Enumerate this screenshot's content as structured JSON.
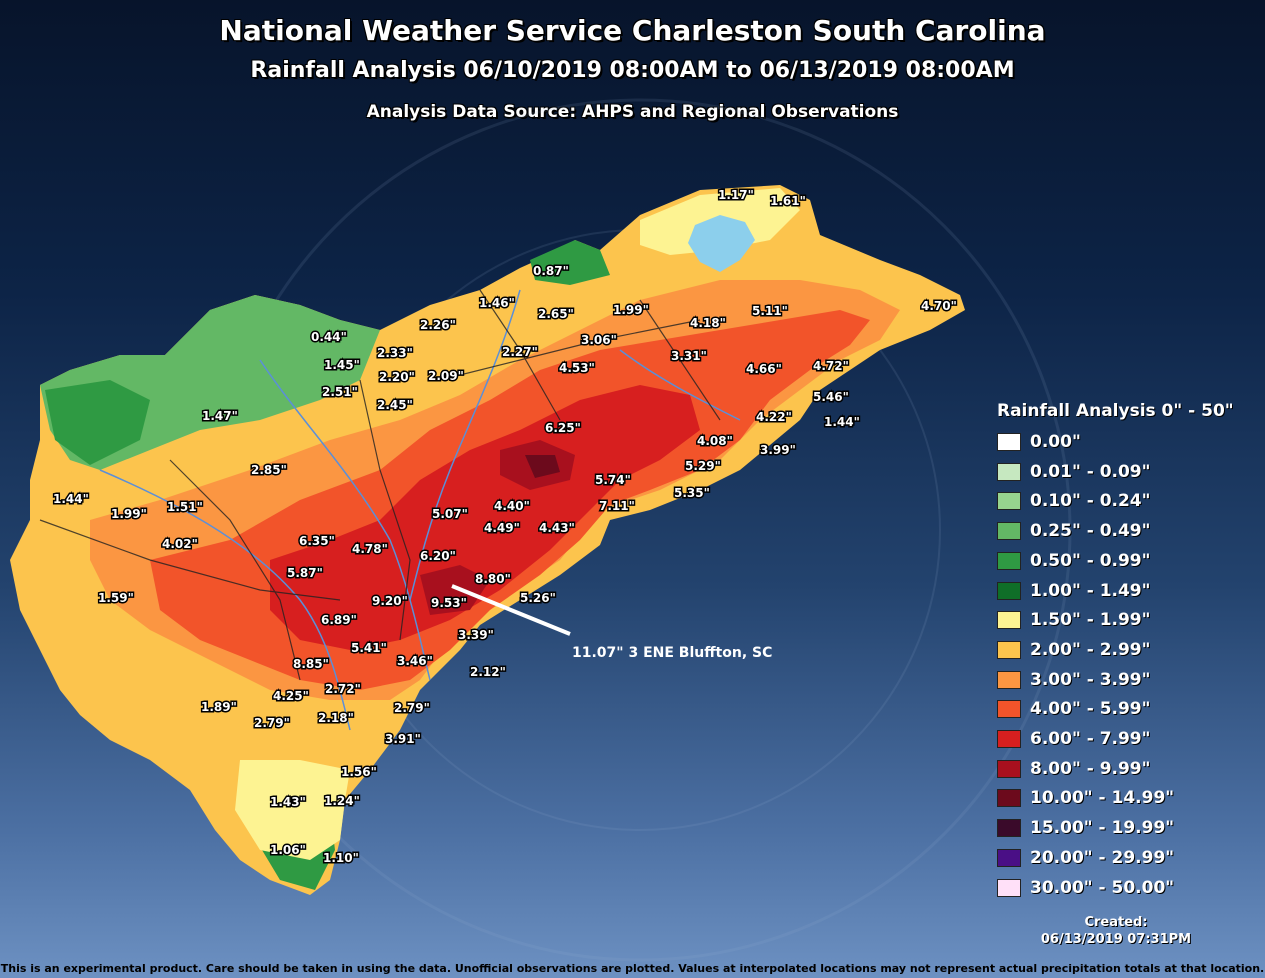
{
  "title": "National Weather Service Charleston South Carolina",
  "subtitle": "Rainfall Analysis 06/10/2019 08:00AM to 06/13/2019 08:00AM",
  "source": "Analysis Data Source: AHPS and Regional Observations",
  "watermark_icon": "nws-seal-watermark",
  "map": {
    "max_annotation": "11.07\" 3 ENE Bluffton, SC",
    "labels": [
      "1.17\"",
      "1.61\"",
      "0.87\"",
      "4.70\"",
      "1.46\"",
      "2.65\"",
      "1.99\"",
      "4.18\"",
      "5.11\"",
      "2.26\"",
      "3.06\"",
      "3.31\"",
      "0.44\"",
      "2.33\"",
      "2.27\"",
      "4.53\"",
      "4.66\"",
      "4.72\"",
      "1.45\"",
      "2.20\"",
      "2.09\"",
      "5.46\"",
      "2.51\"",
      "2.45\"",
      "4.22\"",
      "1.44\"",
      "1.47\"",
      "6.25\"",
      "4.08\"",
      "3.99\"",
      "2.85\"",
      "5.29\"",
      "5.74\"",
      "1.44\"",
      "5.35\"",
      "1.51\"",
      "4.40\"",
      "7.11\"",
      "1.99\"",
      "5.07\"",
      "4.49\"",
      "4.43\"",
      "4.02\"",
      "6.35\"",
      "4.78\"",
      "6.20\"",
      "5.87\"",
      "8.80\"",
      "1.59\"",
      "9.20\"",
      "9.53\"",
      "5.26\"",
      "6.89\"",
      "3.39\"",
      "5.41\"",
      "8.85\"",
      "3.46\"",
      "2.12\"",
      "1.89\"",
      "4.25\"",
      "2.72\"",
      "2.79\"",
      "2.79\"",
      "2.18\"",
      "3.91\"",
      "1.56\"",
      "1.43\"",
      "1.24\"",
      "1.06\"",
      "1.10\""
    ]
  },
  "legend": {
    "title": "Rainfall Analysis 0\" - 50\"",
    "items": [
      {
        "label": "0.00\"",
        "color": "#ffffff"
      },
      {
        "label": "0.01\" - 0.09\"",
        "color": "#c6e8c0"
      },
      {
        "label": "0.10\" - 0.24\"",
        "color": "#97d48e"
      },
      {
        "label": "0.25\" - 0.49\"",
        "color": "#63b865"
      },
      {
        "label": "0.50\" - 0.99\"",
        "color": "#2f9a43"
      },
      {
        "label": "1.00\" - 1.49\"",
        "color": "#0f6e28"
      },
      {
        "label": "1.50\" - 1.99\"",
        "color": "#fdf392"
      },
      {
        "label": "2.00\" - 2.99\"",
        "color": "#fcc44d"
      },
      {
        "label": "3.00\" - 3.99\"",
        "color": "#fb9642"
      },
      {
        "label": "4.00\" - 5.99\"",
        "color": "#f2542a"
      },
      {
        "label": "6.00\" - 7.99\"",
        "color": "#d71f1f"
      },
      {
        "label": "8.00\" - 9.99\"",
        "color": "#a8101e"
      },
      {
        "label": "10.00\" - 14.99\"",
        "color": "#6c0a1c"
      },
      {
        "label": "15.00\" - 19.99\"",
        "color": "#3a0a2a"
      },
      {
        "label": "20.00\" - 29.99\"",
        "color": "#4a0f86"
      },
      {
        "label": "30.00\" - 50.00\"",
        "color": "#ffe0f8"
      }
    ]
  },
  "created_label": "Created:",
  "created_time": "06/13/2019 07:31PM",
  "disclaimer": "This is an experimental product. Care should be taken in using the data. Unofficial observations are plotted. Values at interpolated locations may not represent actual precipitation totals at that location."
}
